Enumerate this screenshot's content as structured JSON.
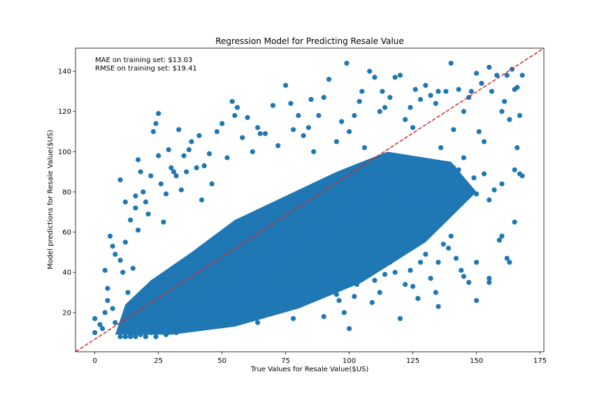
{
  "chart_data": {
    "type": "scatter",
    "title": "Regression Model for Predicting Resale Value",
    "xlabel": "True Values for Resale Value($US)",
    "ylabel": "Model predictions for Resale Value($US)",
    "xlim": [
      -7.6,
      176.5
    ],
    "ylim": [
      0.5,
      151.5
    ],
    "xticks": [
      0,
      25,
      50,
      75,
      100,
      125,
      150,
      175
    ],
    "yticks": [
      20,
      40,
      60,
      80,
      100,
      120,
      140
    ],
    "grid": false,
    "annotations": [
      "MAE on training set: $13.03",
      "RMSE on training set: $19.41"
    ],
    "reference_line": {
      "style": "dashed",
      "color": "#d62728",
      "from": [
        -7.6,
        0.5
      ],
      "to": [
        176.5,
        151.5
      ]
    },
    "colors": {
      "points": "#1f77b4",
      "reference_line": "#d62728"
    },
    "series": [
      {
        "points": [
          [
            0,
            17
          ],
          [
            0,
            10
          ],
          [
            2,
            14
          ],
          [
            3,
            12
          ],
          [
            4,
            20
          ],
          [
            4,
            41
          ],
          [
            5,
            32
          ],
          [
            5,
            26
          ],
          [
            6,
            58
          ],
          [
            7,
            53
          ],
          [
            7,
            22
          ],
          [
            8,
            49
          ],
          [
            8,
            15
          ],
          [
            10,
            86
          ],
          [
            10,
            46
          ],
          [
            11,
            40
          ],
          [
            12,
            75
          ],
          [
            12,
            55
          ],
          [
            13,
            30
          ],
          [
            14,
            66
          ],
          [
            15,
            42
          ],
          [
            16,
            72
          ],
          [
            16,
            78
          ],
          [
            17,
            61
          ],
          [
            17,
            96
          ],
          [
            18,
            90
          ],
          [
            19,
            80
          ],
          [
            20,
            75
          ],
          [
            21,
            69
          ],
          [
            22,
            88
          ],
          [
            23,
            110
          ],
          [
            24,
            114
          ],
          [
            25,
            119
          ],
          [
            25,
            98
          ],
          [
            26,
            84
          ],
          [
            27,
            65
          ],
          [
            28,
            79
          ],
          [
            29,
            101
          ],
          [
            30,
            92
          ],
          [
            31,
            90
          ],
          [
            32,
            88
          ],
          [
            33,
            111
          ],
          [
            34,
            81
          ],
          [
            35,
            98
          ],
          [
            36,
            90
          ],
          [
            37,
            101
          ],
          [
            38,
            105
          ],
          [
            40,
            92
          ],
          [
            40,
            24
          ],
          [
            41,
            108
          ],
          [
            42,
            76
          ],
          [
            43,
            93
          ],
          [
            45,
            99
          ],
          [
            46,
            84
          ],
          [
            48,
            110
          ],
          [
            50,
            114
          ],
          [
            52,
            97
          ],
          [
            54,
            125
          ],
          [
            55,
            118
          ],
          [
            56,
            122
          ],
          [
            58,
            107
          ],
          [
            60,
            117
          ],
          [
            62,
            100
          ],
          [
            64,
            112
          ],
          [
            65,
            109
          ],
          [
            67,
            109
          ],
          [
            70,
            123
          ],
          [
            72,
            103
          ],
          [
            75,
            133
          ],
          [
            77,
            124
          ],
          [
            78,
            111
          ],
          [
            80,
            118
          ],
          [
            82,
            108
          ],
          [
            84,
            112
          ],
          [
            85,
            126
          ],
          [
            86,
            100
          ],
          [
            88,
            118
          ],
          [
            90,
            127
          ],
          [
            92,
            136
          ],
          [
            95,
            105
          ],
          [
            97,
            115
          ],
          [
            99,
            144
          ],
          [
            100,
            110
          ],
          [
            102,
            118
          ],
          [
            104,
            125
          ],
          [
            105,
            130
          ],
          [
            106,
            102
          ],
          [
            108,
            140
          ],
          [
            110,
            137
          ],
          [
            112,
            120
          ],
          [
            113,
            130
          ],
          [
            114,
            122
          ],
          [
            116,
            127
          ],
          [
            118,
            137
          ],
          [
            120,
            138
          ],
          [
            122,
            116
          ],
          [
            124,
            122
          ],
          [
            125,
            112
          ],
          [
            126,
            131
          ],
          [
            128,
            126
          ],
          [
            130,
            133
          ],
          [
            132,
            128
          ],
          [
            134,
            124
          ],
          [
            135,
            130
          ],
          [
            136,
            102
          ],
          [
            138,
            130
          ],
          [
            140,
            144
          ],
          [
            141,
            111
          ],
          [
            143,
            131
          ],
          [
            145,
            120
          ],
          [
            147,
            127
          ],
          [
            148,
            130
          ],
          [
            150,
            139
          ],
          [
            151,
            110
          ],
          [
            152,
            134
          ],
          [
            153,
            105
          ],
          [
            155,
            142
          ],
          [
            156,
            130
          ],
          [
            158,
            138
          ],
          [
            160,
            120
          ],
          [
            161,
            125
          ],
          [
            162,
            138
          ],
          [
            163,
            116
          ],
          [
            164,
            141
          ],
          [
            165,
            131
          ],
          [
            166,
            102
          ],
          [
            167,
            118
          ],
          [
            168,
            138
          ],
          [
            166,
            132
          ],
          [
            167,
            89
          ],
          [
            168,
            88
          ],
          [
            165,
            91
          ],
          [
            160,
            84
          ],
          [
            157,
            81
          ],
          [
            155,
            76
          ],
          [
            153,
            89
          ],
          [
            150,
            79
          ],
          [
            149,
            87
          ],
          [
            147,
            82
          ],
          [
            145,
            97
          ],
          [
            143,
            91
          ],
          [
            141,
            92
          ],
          [
            138,
            84
          ],
          [
            136,
            88
          ],
          [
            134,
            90
          ],
          [
            132,
            86
          ],
          [
            130,
            92
          ],
          [
            128,
            78
          ],
          [
            126,
            81
          ],
          [
            124,
            84
          ],
          [
            122,
            80
          ],
          [
            120,
            80
          ],
          [
            118,
            84
          ],
          [
            116,
            82
          ],
          [
            112,
            88
          ],
          [
            110,
            83
          ],
          [
            108,
            86
          ],
          [
            106,
            75
          ],
          [
            104,
            69
          ],
          [
            102,
            74
          ],
          [
            100,
            71
          ],
          [
            98,
            66
          ],
          [
            96,
            60
          ],
          [
            94,
            76
          ],
          [
            92,
            77
          ],
          [
            90,
            68
          ],
          [
            88,
            69
          ],
          [
            86,
            63
          ],
          [
            84,
            62
          ],
          [
            82,
            60
          ],
          [
            80,
            60
          ],
          [
            78,
            58
          ],
          [
            76,
            56
          ],
          [
            74,
            61
          ],
          [
            72,
            54
          ],
          [
            70,
            49
          ],
          [
            68,
            48
          ],
          [
            66,
            45
          ],
          [
            64,
            43
          ],
          [
            62,
            41
          ],
          [
            60,
            42
          ],
          [
            58,
            37
          ],
          [
            56,
            36
          ],
          [
            54,
            34
          ],
          [
            52,
            31
          ],
          [
            50,
            30
          ],
          [
            48,
            28
          ],
          [
            46,
            26
          ],
          [
            44,
            24
          ],
          [
            42,
            22
          ],
          [
            40,
            21
          ],
          [
            38,
            20
          ],
          [
            36,
            19
          ],
          [
            34,
            18
          ],
          [
            32,
            17
          ],
          [
            30,
            16
          ],
          [
            28,
            15
          ],
          [
            26,
            14
          ],
          [
            24,
            13
          ],
          [
            22,
            12
          ],
          [
            20,
            11
          ],
          [
            18,
            10
          ],
          [
            16,
            9
          ],
          [
            14,
            9
          ],
          [
            12,
            8
          ],
          [
            10,
            8
          ],
          [
            165,
            65
          ],
          [
            163,
            45
          ],
          [
            162,
            47
          ],
          [
            160,
            58
          ],
          [
            159,
            56
          ],
          [
            155,
            37
          ],
          [
            155,
            35
          ],
          [
            150,
            45
          ],
          [
            150,
            26
          ],
          [
            147,
            35
          ],
          [
            145,
            38
          ],
          [
            144,
            41
          ],
          [
            142,
            47
          ],
          [
            140,
            58
          ],
          [
            139,
            52
          ],
          [
            137,
            54
          ],
          [
            135,
            45
          ],
          [
            135,
            23
          ],
          [
            134,
            30
          ],
          [
            132,
            37
          ],
          [
            130,
            49
          ],
          [
            128,
            45
          ],
          [
            127,
            27
          ],
          [
            125,
            33
          ],
          [
            124,
            41
          ],
          [
            122,
            34
          ],
          [
            120,
            17
          ],
          [
            118,
            40
          ],
          [
            116,
            45
          ],
          [
            114,
            39
          ],
          [
            112,
            30
          ],
          [
            110,
            36
          ],
          [
            109,
            25
          ],
          [
            107,
            40
          ],
          [
            105,
            37
          ],
          [
            103,
            34
          ],
          [
            102,
            28
          ],
          [
            100,
            39
          ],
          [
            100,
            12
          ],
          [
            98,
            20
          ],
          [
            96,
            26
          ],
          [
            95,
            29
          ],
          [
            93,
            35
          ],
          [
            91,
            35
          ],
          [
            90,
            18
          ],
          [
            88,
            37
          ],
          [
            86,
            27
          ],
          [
            84,
            28
          ],
          [
            82,
            28
          ],
          [
            80,
            30
          ],
          [
            78,
            17
          ],
          [
            76,
            30
          ],
          [
            74,
            30
          ],
          [
            72,
            24
          ],
          [
            70,
            26
          ],
          [
            68,
            28
          ],
          [
            66,
            20
          ],
          [
            64,
            15
          ],
          [
            62,
            27
          ],
          [
            60,
            26
          ],
          [
            58,
            19
          ],
          [
            56,
            20
          ],
          [
            55,
            27
          ],
          [
            53,
            24
          ],
          [
            50,
            17
          ],
          [
            48,
            20
          ],
          [
            46,
            19
          ],
          [
            44,
            22
          ],
          [
            42,
            13
          ],
          [
            40,
            18
          ],
          [
            38,
            16
          ],
          [
            36,
            12
          ],
          [
            34,
            14
          ],
          [
            32,
            10
          ],
          [
            30,
            13
          ],
          [
            28,
            9
          ],
          [
            26,
            11
          ],
          [
            24,
            8
          ],
          [
            22,
            10
          ],
          [
            20,
            8
          ],
          [
            18,
            9
          ],
          [
            16,
            8
          ],
          [
            14,
            8
          ],
          [
            12,
            8
          ]
        ]
      }
    ]
  }
}
